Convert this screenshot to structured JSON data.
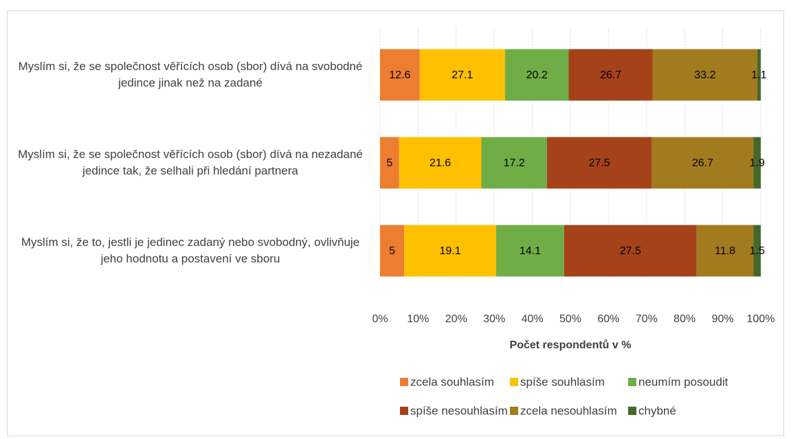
{
  "chart_data": {
    "type": "bar",
    "orientation": "horizontal",
    "stacking": "percent",
    "categories": [
      "Myslím si, že se společnost věřících osob (sbor) dívá na svobodné jedince jinak než na zadané",
      "Myslím si, že se společnost věřících osob (sbor) dívá na nezadané jedince tak, že selhali při hledání partnera",
      "Myslím si, že to, jestli je jedinec zadaný nebo svobodný, ovlivňuje jeho hodnotu a postavení ve sboru"
    ],
    "series": [
      {
        "name": "zcela souhlasím",
        "color": "#ed7d31",
        "values": [
          12.6,
          5,
          5
        ]
      },
      {
        "name": "spíše souhlasím",
        "color": "#ffc000",
        "values": [
          27.1,
          21.6,
          19.1
        ]
      },
      {
        "name": "neumím posoudit",
        "color": "#70ad47",
        "values": [
          20.2,
          17.2,
          14.1
        ]
      },
      {
        "name": "spíše nesouhlasím",
        "color": "#a5421a",
        "values": [
          26.7,
          27.5,
          27.5
        ]
      },
      {
        "name": "zcela nesouhlasím",
        "color": "#a27b1f",
        "values": [
          33.2,
          26.7,
          11.8
        ]
      },
      {
        "name": "chybné",
        "color": "#44692b",
        "values": [
          1.1,
          1.9,
          1.5
        ]
      }
    ],
    "xlabel": "Počet respondentů v %",
    "xlim": [
      0,
      100
    ],
    "xticks": [
      {
        "value": 0,
        "label": "0%"
      },
      {
        "value": 10,
        "label": "10%"
      },
      {
        "value": 20,
        "label": "20%"
      },
      {
        "value": 30,
        "label": "30%"
      },
      {
        "value": 40,
        "label": "40%"
      },
      {
        "value": 50,
        "label": "50%"
      },
      {
        "value": 60,
        "label": "60%"
      },
      {
        "value": 70,
        "label": "70%"
      },
      {
        "value": 80,
        "label": "80%"
      },
      {
        "value": 90,
        "label": "90%"
      },
      {
        "value": 100,
        "label": "100%"
      }
    ],
    "grid": true,
    "legend": "bottom"
  }
}
